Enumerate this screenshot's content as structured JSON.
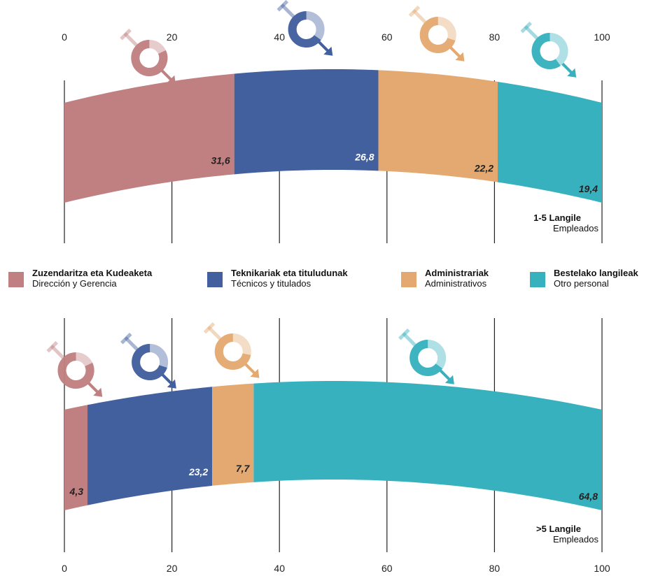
{
  "colors": {
    "zuzendaritza": "#c07f80",
    "teknikariak": "#42609e",
    "administrariak": "#e4a971",
    "bestelako": "#38b1bf",
    "gridline": "#222222"
  },
  "legend": [
    {
      "key": "zuzendaritza",
      "title": "Zuzendaritza eta Kudeaketa",
      "sub": "Dirección y Gerencia",
      "color": "#c07f80"
    },
    {
      "key": "teknikariak",
      "title": "Teknikariak eta tituludunak",
      "sub": "Técnicos y titulados",
      "color": "#42609e"
    },
    {
      "key": "administrariak",
      "title": "Administrariak",
      "sub": "Administrativos",
      "color": "#e4a971"
    },
    {
      "key": "bestelako",
      "title": "Bestelako langileak",
      "sub": "Otro personal",
      "color": "#38b1bf"
    }
  ],
  "icons": [
    "female-male-donut-icon"
  ],
  "chart_data": [
    {
      "type": "bar",
      "stacked": true,
      "orientation": "horizontal",
      "panel_title": "1-5 Langile",
      "panel_subtitle": "Empleados",
      "categories": [
        "Zuzendaritza eta Kudeaketa",
        "Teknikariak eta tituludunak",
        "Administrariak",
        "Bestelako langileak"
      ],
      "values": [
        31.6,
        26.8,
        22.2,
        19.4
      ],
      "labels": [
        "31,6",
        "26,8",
        "22,2",
        "19,4"
      ],
      "value_label_colors": [
        "#222222",
        "#ffffff",
        "#222222",
        "#222222"
      ],
      "female_share": [
        0.18,
        0.35,
        0.3,
        0.4
      ],
      "xlim": [
        0,
        100
      ],
      "xticks": [
        "0",
        "20",
        "40",
        "60",
        "80",
        "100"
      ],
      "tick_position": "top"
    },
    {
      "type": "bar",
      "stacked": true,
      "orientation": "horizontal",
      "panel_title": ">5 Langile",
      "panel_subtitle": "Empleados",
      "categories": [
        "Zuzendaritza eta Kudeaketa",
        "Teknikariak eta tituludunak",
        "Administrariak",
        "Bestelako langileak"
      ],
      "values": [
        4.3,
        23.2,
        7.7,
        64.8
      ],
      "labels": [
        "4,3",
        "23,2",
        "7,7",
        "64,8"
      ],
      "value_label_colors": [
        "#222222",
        "#ffffff",
        "#222222",
        "#222222"
      ],
      "female_share": [
        0.18,
        0.3,
        0.28,
        0.35
      ],
      "xlim": [
        0,
        100
      ],
      "xticks": [
        "0",
        "20",
        "40",
        "60",
        "80",
        "100"
      ],
      "tick_position": "bottom"
    }
  ]
}
